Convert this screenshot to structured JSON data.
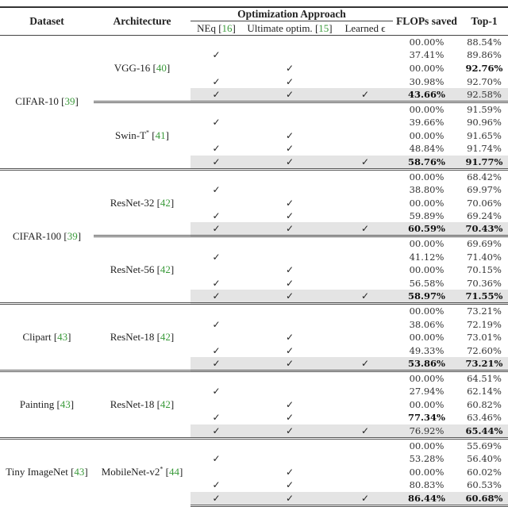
{
  "header": {
    "dataset": "Dataset",
    "architecture": "Architecture",
    "optimization_approach": "Optimization Approach",
    "neq": "NEq",
    "neq_cite": "16",
    "ultimate": "Ultimate optim.",
    "ultimate_cite": "15",
    "learned": "Learned ϵ",
    "flops": "FLOPs saved",
    "top1": "Top-1"
  },
  "check_symbol": "✓",
  "cite_color": "#3a9a3a",
  "highlight_color": "#e4e4e4",
  "row_methods": [
    [
      false,
      false,
      false
    ],
    [
      true,
      false,
      false
    ],
    [
      false,
      true,
      false
    ],
    [
      true,
      true,
      false
    ],
    [
      true,
      true,
      true
    ]
  ],
  "datasets": [
    {
      "name": "CIFAR-10",
      "cite": "39",
      "archs": [
        {
          "name": "VGG-16",
          "star": false,
          "cite": "40",
          "rows": [
            {
              "flops": "00.00%",
              "top1": "88.54%"
            },
            {
              "flops": "37.41%",
              "top1": "89.86%"
            },
            {
              "flops": "00.00%",
              "top1": "92.76%",
              "top1_bold": true
            },
            {
              "flops": "30.98%",
              "top1": "92.70%"
            },
            {
              "flops": "43.66%",
              "flops_bold": true,
              "top1": "92.58%"
            }
          ]
        },
        {
          "name": "Swin-T",
          "star": true,
          "cite": "41",
          "rows": [
            {
              "flops": "00.00%",
              "top1": "91.59%"
            },
            {
              "flops": "39.66%",
              "top1": "90.96%"
            },
            {
              "flops": "00.00%",
              "top1": "91.65%"
            },
            {
              "flops": "48.84%",
              "top1": "91.74%"
            },
            {
              "flops": "58.76%",
              "flops_bold": true,
              "top1": "91.77%",
              "top1_bold": true
            }
          ]
        }
      ]
    },
    {
      "name": "CIFAR-100",
      "cite": "39",
      "archs": [
        {
          "name": "ResNet-32",
          "star": false,
          "cite": "42",
          "rows": [
            {
              "flops": "00.00%",
              "top1": "68.42%"
            },
            {
              "flops": "38.80%",
              "top1": "69.97%"
            },
            {
              "flops": "00.00%",
              "top1": "70.06%"
            },
            {
              "flops": "59.89%",
              "top1": "69.24%"
            },
            {
              "flops": "60.59%",
              "flops_bold": true,
              "top1": "70.43%",
              "top1_bold": true
            }
          ]
        },
        {
          "name": "ResNet-56",
          "star": false,
          "cite": "42",
          "rows": [
            {
              "flops": "00.00%",
              "top1": "69.69%"
            },
            {
              "flops": "41.12%",
              "top1": "71.40%"
            },
            {
              "flops": "00.00%",
              "top1": "70.15%"
            },
            {
              "flops": "56.58%",
              "top1": "70.36%"
            },
            {
              "flops": "58.97%",
              "flops_bold": true,
              "top1": "71.55%",
              "top1_bold": true
            }
          ]
        }
      ]
    },
    {
      "name": "Clipart",
      "cite": "43",
      "archs": [
        {
          "name": "ResNet-18",
          "star": false,
          "cite": "42",
          "rows": [
            {
              "flops": "00.00%",
              "top1": "73.21%"
            },
            {
              "flops": "38.06%",
              "top1": "72.19%"
            },
            {
              "flops": "00.00%",
              "top1": "73.01%"
            },
            {
              "flops": "49.33%",
              "top1": "72.60%"
            },
            {
              "flops": "53.86%",
              "flops_bold": true,
              "top1": "73.21%",
              "top1_bold": true
            }
          ]
        }
      ]
    },
    {
      "name": "Painting",
      "cite": "43",
      "archs": [
        {
          "name": "ResNet-18",
          "star": false,
          "cite": "42",
          "rows": [
            {
              "flops": "00.00%",
              "top1": "64.51%"
            },
            {
              "flops": "27.94%",
              "top1": "62.14%"
            },
            {
              "flops": "00.00%",
              "top1": "60.82%"
            },
            {
              "flops": "77.34%",
              "flops_bold": true,
              "top1": "63.46%"
            },
            {
              "flops": "76.92%",
              "top1": "65.44%",
              "top1_bold": true
            }
          ]
        }
      ]
    },
    {
      "name": "Tiny ImageNet",
      "cite": "43",
      "archs": [
        {
          "name": "MobileNet-v2",
          "star": true,
          "cite": "44",
          "rows": [
            {
              "flops": "00.00%",
              "top1": "55.69%"
            },
            {
              "flops": "53.28%",
              "top1": "56.40%"
            },
            {
              "flops": "00.00%",
              "top1": "60.02%"
            },
            {
              "flops": "80.83%",
              "top1": "60.53%"
            },
            {
              "flops": "86.44%",
              "flops_bold": true,
              "top1": "60.68%",
              "top1_bold": true
            }
          ]
        }
      ]
    }
  ]
}
